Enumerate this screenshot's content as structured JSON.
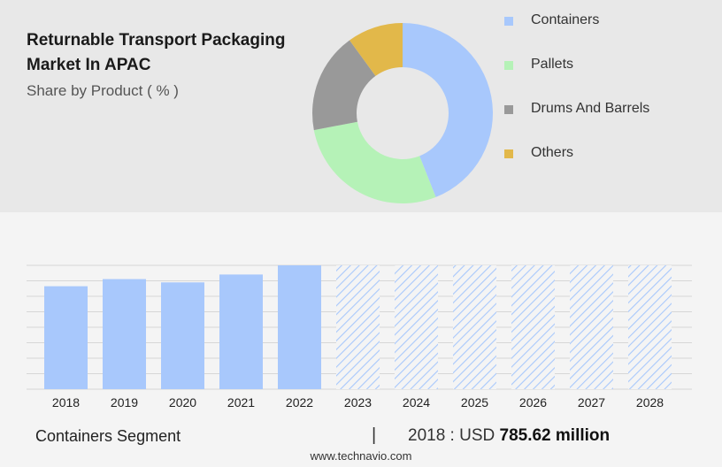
{
  "header": {
    "title_line1": "Returnable Transport Packaging",
    "title_line2": "Market In APAC",
    "subtitle": "Share by Product ( % )"
  },
  "colors": {
    "containers": "#a8c8fc",
    "pallets": "#b5f2b7",
    "drums_and_barrels": "#999999",
    "others": "#e2b84a",
    "forecast_hatch": "#a8c8fc",
    "grid": "#d6d6d6"
  },
  "chart_data": [
    {
      "type": "pie",
      "donut": true,
      "title": "",
      "legend_position": "right",
      "slices": [
        {
          "name": "Containers",
          "value": 44
        },
        {
          "name": "Pallets",
          "value": 28
        },
        {
          "name": "Drums And Barrels",
          "value": 18
        },
        {
          "name": "Others",
          "value": 10
        }
      ]
    },
    {
      "type": "bar",
      "title": "",
      "categories": [
        "2018",
        "2019",
        "2020",
        "2021",
        "2022",
        "2023",
        "2024",
        "2025",
        "2026",
        "2027",
        "2028"
      ],
      "values": [
        785.62,
        840,
        815,
        875,
        945,
        null,
        null,
        null,
        null,
        null,
        null
      ],
      "forecast_from": "2023",
      "grid": true,
      "ylim": [
        0,
        945
      ]
    }
  ],
  "footer": {
    "segment": "Containers Segment",
    "separator": "|",
    "stat_prefix": "2018 : USD",
    "stat_value": "785.62 million",
    "source": "www.technavio.com"
  }
}
